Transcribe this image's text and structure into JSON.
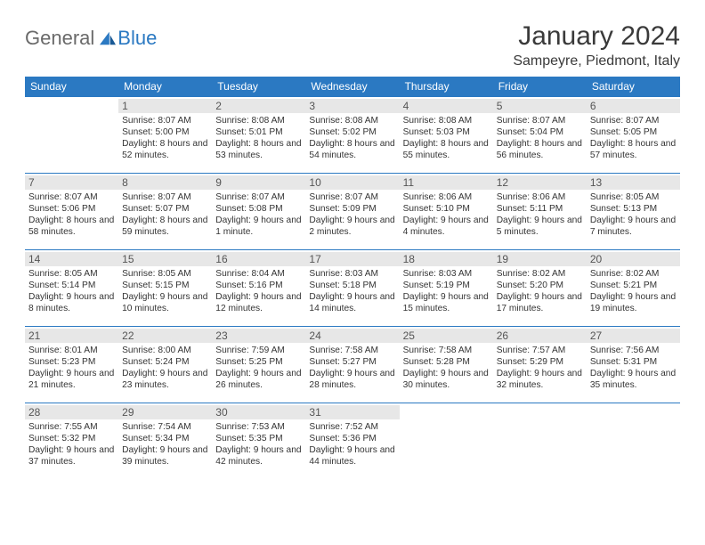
{
  "logo": {
    "part1": "General",
    "part2": "Blue"
  },
  "title": "January 2024",
  "location": "Sampeyre, Piedmont, Italy",
  "colors": {
    "header_bg": "#2b79c2",
    "header_text": "#ffffff",
    "daynum_bg": "#e7e7e7",
    "rule": "#2b79c2",
    "logo_gray": "#6a6a6a",
    "logo_blue": "#2b79c2"
  },
  "weekdays": [
    "Sunday",
    "Monday",
    "Tuesday",
    "Wednesday",
    "Thursday",
    "Friday",
    "Saturday"
  ],
  "first_weekday_index": 1,
  "days": [
    {
      "n": 1,
      "sunrise": "8:07 AM",
      "sunset": "5:00 PM",
      "daylight": "8 hours and 52 minutes."
    },
    {
      "n": 2,
      "sunrise": "8:08 AM",
      "sunset": "5:01 PM",
      "daylight": "8 hours and 53 minutes."
    },
    {
      "n": 3,
      "sunrise": "8:08 AM",
      "sunset": "5:02 PM",
      "daylight": "8 hours and 54 minutes."
    },
    {
      "n": 4,
      "sunrise": "8:08 AM",
      "sunset": "5:03 PM",
      "daylight": "8 hours and 55 minutes."
    },
    {
      "n": 5,
      "sunrise": "8:07 AM",
      "sunset": "5:04 PM",
      "daylight": "8 hours and 56 minutes."
    },
    {
      "n": 6,
      "sunrise": "8:07 AM",
      "sunset": "5:05 PM",
      "daylight": "8 hours and 57 minutes."
    },
    {
      "n": 7,
      "sunrise": "8:07 AM",
      "sunset": "5:06 PM",
      "daylight": "8 hours and 58 minutes."
    },
    {
      "n": 8,
      "sunrise": "8:07 AM",
      "sunset": "5:07 PM",
      "daylight": "8 hours and 59 minutes."
    },
    {
      "n": 9,
      "sunrise": "8:07 AM",
      "sunset": "5:08 PM",
      "daylight": "9 hours and 1 minute."
    },
    {
      "n": 10,
      "sunrise": "8:07 AM",
      "sunset": "5:09 PM",
      "daylight": "9 hours and 2 minutes."
    },
    {
      "n": 11,
      "sunrise": "8:06 AM",
      "sunset": "5:10 PM",
      "daylight": "9 hours and 4 minutes."
    },
    {
      "n": 12,
      "sunrise": "8:06 AM",
      "sunset": "5:11 PM",
      "daylight": "9 hours and 5 minutes."
    },
    {
      "n": 13,
      "sunrise": "8:05 AM",
      "sunset": "5:13 PM",
      "daylight": "9 hours and 7 minutes."
    },
    {
      "n": 14,
      "sunrise": "8:05 AM",
      "sunset": "5:14 PM",
      "daylight": "9 hours and 8 minutes."
    },
    {
      "n": 15,
      "sunrise": "8:05 AM",
      "sunset": "5:15 PM",
      "daylight": "9 hours and 10 minutes."
    },
    {
      "n": 16,
      "sunrise": "8:04 AM",
      "sunset": "5:16 PM",
      "daylight": "9 hours and 12 minutes."
    },
    {
      "n": 17,
      "sunrise": "8:03 AM",
      "sunset": "5:18 PM",
      "daylight": "9 hours and 14 minutes."
    },
    {
      "n": 18,
      "sunrise": "8:03 AM",
      "sunset": "5:19 PM",
      "daylight": "9 hours and 15 minutes."
    },
    {
      "n": 19,
      "sunrise": "8:02 AM",
      "sunset": "5:20 PM",
      "daylight": "9 hours and 17 minutes."
    },
    {
      "n": 20,
      "sunrise": "8:02 AM",
      "sunset": "5:21 PM",
      "daylight": "9 hours and 19 minutes."
    },
    {
      "n": 21,
      "sunrise": "8:01 AM",
      "sunset": "5:23 PM",
      "daylight": "9 hours and 21 minutes."
    },
    {
      "n": 22,
      "sunrise": "8:00 AM",
      "sunset": "5:24 PM",
      "daylight": "9 hours and 23 minutes."
    },
    {
      "n": 23,
      "sunrise": "7:59 AM",
      "sunset": "5:25 PM",
      "daylight": "9 hours and 26 minutes."
    },
    {
      "n": 24,
      "sunrise": "7:58 AM",
      "sunset": "5:27 PM",
      "daylight": "9 hours and 28 minutes."
    },
    {
      "n": 25,
      "sunrise": "7:58 AM",
      "sunset": "5:28 PM",
      "daylight": "9 hours and 30 minutes."
    },
    {
      "n": 26,
      "sunrise": "7:57 AM",
      "sunset": "5:29 PM",
      "daylight": "9 hours and 32 minutes."
    },
    {
      "n": 27,
      "sunrise": "7:56 AM",
      "sunset": "5:31 PM",
      "daylight": "9 hours and 35 minutes."
    },
    {
      "n": 28,
      "sunrise": "7:55 AM",
      "sunset": "5:32 PM",
      "daylight": "9 hours and 37 minutes."
    },
    {
      "n": 29,
      "sunrise": "7:54 AM",
      "sunset": "5:34 PM",
      "daylight": "9 hours and 39 minutes."
    },
    {
      "n": 30,
      "sunrise": "7:53 AM",
      "sunset": "5:35 PM",
      "daylight": "9 hours and 42 minutes."
    },
    {
      "n": 31,
      "sunrise": "7:52 AM",
      "sunset": "5:36 PM",
      "daylight": "9 hours and 44 minutes."
    }
  ],
  "labels": {
    "sunrise": "Sunrise:",
    "sunset": "Sunset:",
    "daylight": "Daylight:"
  }
}
